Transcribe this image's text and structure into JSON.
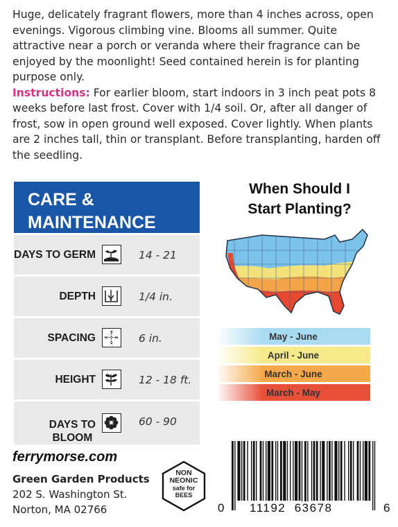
{
  "description": {
    "text": "Huge, delicately fragrant flowers, more than 4 inches across, open evenings. Vigorous climbing vine. Blooms all summer. Quite attractive near a porch or veranda where their fragrance can be enjoyed by the moonlight! Seed contained herein is for planting purpose only.",
    "instructions_label": "Instructions:",
    "instructions_text": " For earlier bloom, start indoors in 3 inch peat pots 8 weeks before last frost. Cover with 1/4 soil. Or, after all danger of frost, sow in open ground well exposed. Cover lightly. When plants are 2 inches tall, thin or transplant. Before transplanting, harden off the seedling.",
    "instructions_color": "#d63384"
  },
  "care": {
    "title_line1": "CARE &",
    "title_line2": "MAINTENANCE",
    "header_color": "#1a56a8",
    "rows": [
      {
        "label": "DAYS TO GERM",
        "value": "14 - 21",
        "icon": "seedling-icon"
      },
      {
        "label": "DEPTH",
        "value": "1/4 in.",
        "icon": "depth-icon"
      },
      {
        "label": "SPACING",
        "value": "6 in.",
        "icon": "spacing-icon"
      },
      {
        "label": "HEIGHT",
        "value": "12 - 18 ft.",
        "icon": "plant-height-icon"
      },
      {
        "label_line1": "DAYS TO",
        "label_line2": "BLOOM",
        "value": "60 - 90",
        "icon": "flower-icon"
      }
    ]
  },
  "map": {
    "title_line1": "When Should I",
    "title_line2": "Start Planting?",
    "legend": [
      {
        "label": "May - June",
        "color": "#a9dcf2"
      },
      {
        "label": "April - June",
        "color": "#f7ea8a"
      },
      {
        "label": "March - June",
        "color": "#f5a84a"
      },
      {
        "label": "March - May",
        "color": "#e8503a"
      }
    ]
  },
  "footer": {
    "url": "ferrymorse.com",
    "company": "Green Garden Products",
    "address1": "202 S. Washington St.",
    "address2": "Norton, MA 02766",
    "badge_line1": "NON",
    "badge_line2": "NEONIC",
    "badge_line3": "safe for",
    "badge_line4": "BEES",
    "barcode_left": "0",
    "barcode_middle": "11192  63678",
    "barcode_right": "6"
  }
}
